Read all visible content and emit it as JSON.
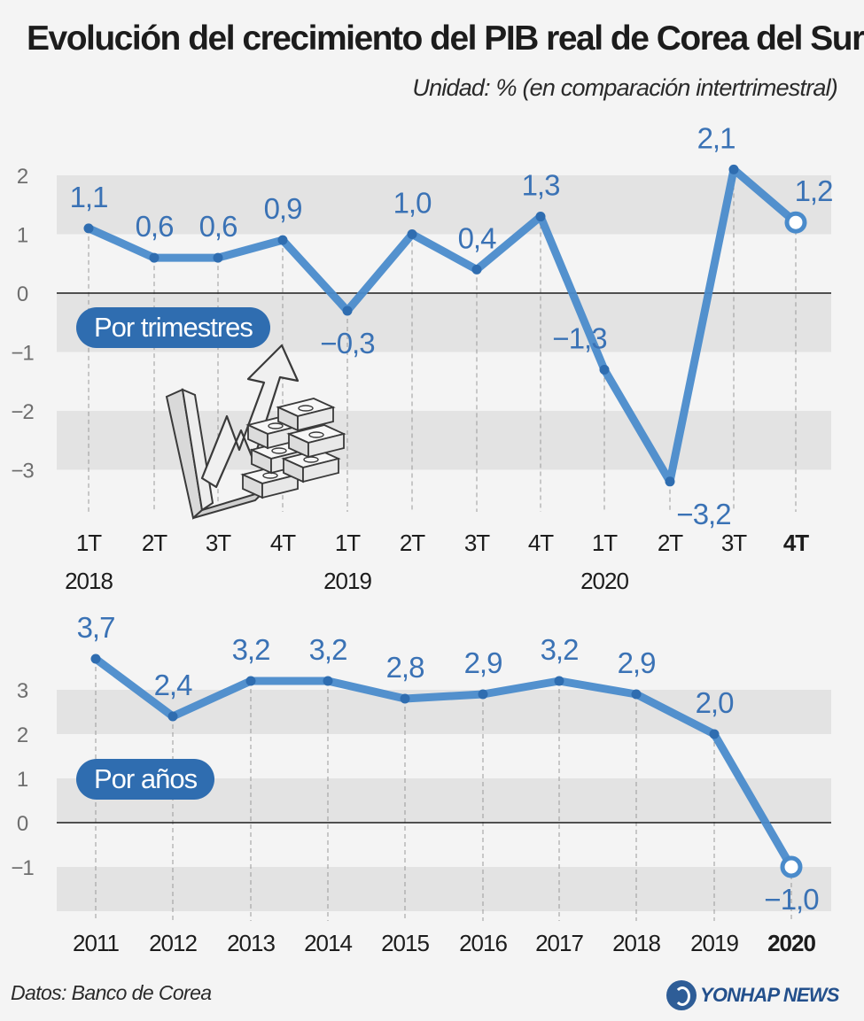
{
  "header": {
    "title": "Evolución del crecimiento del PIB real de Corea del Sur",
    "subtitle": "Unidad: % (en comparación intertrimestral)"
  },
  "footer": {
    "source": "Datos: Banco de Corea",
    "logo_text": "YONHAP NEWS"
  },
  "colors": {
    "line": "#4a8bcb",
    "marker": "#2f6db0",
    "label": "#3a72b5",
    "band": "#e3e3e3",
    "pill": "#2f6db0"
  },
  "chart_data": [
    {
      "type": "line",
      "name_label": "Por trimestres",
      "categories": [
        "1T",
        "2T",
        "3T",
        "4T",
        "1T",
        "2T",
        "3T",
        "4T",
        "1T",
        "2T",
        "3T",
        "4T"
      ],
      "year_labels": [
        {
          "index": 0,
          "label": "2018"
        },
        {
          "index": 4,
          "label": "2019"
        },
        {
          "index": 8,
          "label": "2020"
        }
      ],
      "values": [
        1.1,
        0.6,
        0.6,
        0.9,
        -0.3,
        1.0,
        0.4,
        1.3,
        -1.3,
        -3.2,
        2.1,
        1.2
      ],
      "value_labels": [
        "1,1",
        "0,6",
        "0,6",
        "0,9",
        "−0,3",
        "1,0",
        "0,4",
        "1,3",
        "−1,3",
        "−3,2",
        "2,1",
        "1,2"
      ],
      "y_ticks": [
        2,
        1,
        0,
        -1,
        -2,
        -3
      ],
      "y_tick_labels": [
        "2",
        "1",
        "0",
        "−1",
        "−2",
        "−3"
      ],
      "ylim": [
        -3.5,
        2.5
      ],
      "highlight_last": true,
      "icon": "growth-chart-money-icon"
    },
    {
      "type": "line",
      "name_label": "Por años",
      "categories": [
        "2011",
        "2012",
        "2013",
        "2014",
        "2015",
        "2016",
        "2017",
        "2018",
        "2019",
        "2020"
      ],
      "values": [
        3.7,
        2.4,
        3.2,
        3.2,
        2.8,
        2.9,
        3.2,
        2.9,
        2.0,
        -1.0
      ],
      "value_labels": [
        "3,7",
        "2,4",
        "3,2",
        "3,2",
        "2,8",
        "2,9",
        "3,2",
        "2,9",
        "2,0",
        "−1,0"
      ],
      "y_ticks": [
        3,
        2,
        1,
        0,
        -1
      ],
      "y_tick_labels": [
        "3",
        "2",
        "1",
        "0",
        "−1"
      ],
      "ylim": [
        -2,
        3.8
      ],
      "highlight_last": true
    }
  ]
}
